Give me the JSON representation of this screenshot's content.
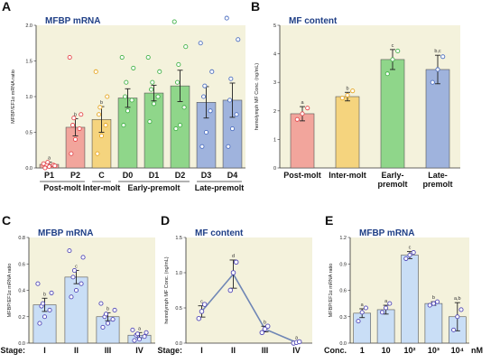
{
  "colors": {
    "plot_bg": "#f4f2dc",
    "title": "#1f3f86",
    "red": "#f2a59c",
    "yellow": "#f5d47e",
    "green": "#8fd68a",
    "blue": "#9fb3dd",
    "light_blue": "#c9def6",
    "dot_red": "#e5484d",
    "dot_yellow": "#e6a623",
    "dot_green": "#44b24a",
    "dot_blue": "#4d6fc0",
    "dot_navy": "#4f46b7"
  },
  "chart_data": [
    {
      "id": "A",
      "type": "bar",
      "panel_label": "A",
      "title": "MFBP mRNA",
      "ylabel": "MFBP/EF1α mRNA ratio",
      "ylim": [
        0,
        2.0
      ],
      "yticks": [
        "0.0",
        "0.5",
        "1.0",
        "1.5",
        "2.0"
      ],
      "categories": [
        "P1",
        "P2",
        "C",
        "D0",
        "D1",
        "D2",
        "D3",
        "D4"
      ],
      "colors": [
        "red",
        "red",
        "yellow",
        "green",
        "green",
        "green",
        "blue",
        "blue"
      ],
      "values": [
        0.05,
        0.57,
        0.68,
        0.98,
        1.05,
        1.15,
        0.92,
        0.95
      ],
      "errors": [
        0.03,
        0.12,
        0.18,
        0.13,
        0.11,
        0.22,
        0.22,
        0.24
      ],
      "letters": [
        "a",
        "b",
        "b",
        "",
        "",
        "",
        "",
        ""
      ],
      "points": [
        [
          0.0,
          0.02,
          0.04,
          0.05,
          0.08,
          0.03,
          0.06
        ],
        [
          0.2,
          0.4,
          0.55,
          0.6,
          0.7,
          0.75,
          1.55
        ],
        [
          0.2,
          0.45,
          0.6,
          0.75,
          0.85,
          1.0,
          1.35
        ],
        [
          0.6,
          0.8,
          0.95,
          1.0,
          1.2,
          1.4,
          1.55
        ],
        [
          0.65,
          0.9,
          1.0,
          1.1,
          1.2,
          1.35,
          1.55
        ],
        [
          0.55,
          0.6,
          0.85,
          1.2,
          1.45,
          1.7,
          2.05
        ],
        [
          0.3,
          0.5,
          0.8,
          1.0,
          1.15,
          1.35,
          1.75
        ],
        [
          0.3,
          0.55,
          0.75,
          0.95,
          1.25,
          1.8,
          2.1
        ]
      ],
      "groups": [
        "Post-molt",
        "Inter-molt",
        "Early-premolt",
        "Late-premolt"
      ]
    },
    {
      "id": "B",
      "type": "bar",
      "panel_label": "B",
      "title": "MF content",
      "ylabel": "hemolymph MF Conc. (ng/mL)",
      "ylim": [
        0,
        5
      ],
      "yticks": [
        "0",
        "1",
        "2",
        "3",
        "4",
        "5"
      ],
      "categories": [
        "Post-molt",
        "Inter-molt",
        "Early-\npremolt",
        "Late-\npremolt"
      ],
      "colors": [
        "red",
        "yellow",
        "green",
        "blue"
      ],
      "values": [
        1.9,
        2.5,
        3.8,
        3.45
      ],
      "errors": [
        0.25,
        0.15,
        0.35,
        0.5
      ],
      "letters": [
        "a",
        "b",
        "c",
        "b,c"
      ],
      "points": [
        [
          1.7,
          1.9,
          2.1
        ],
        [
          2.45,
          2.55,
          2.7
        ],
        [
          3.3,
          3.8,
          4.1
        ],
        [
          3.0,
          3.45,
          3.9
        ]
      ]
    },
    {
      "id": "C",
      "type": "bar",
      "panel_label": "C",
      "title": "MFBP mRNA",
      "ylabel": "MFBP/EF1α mRNA ratio",
      "ylim": [
        0,
        0.8
      ],
      "yticks": [
        "0.0",
        "0.2",
        "0.4",
        "0.6",
        "0.8"
      ],
      "axis_prefix": "Stage:",
      "categories": [
        "I",
        "II",
        "III",
        "IV"
      ],
      "colors": [
        "light_blue",
        "light_blue",
        "light_blue",
        "light_blue"
      ],
      "values": [
        0.29,
        0.5,
        0.2,
        0.06
      ],
      "errors": [
        0.05,
        0.05,
        0.03,
        0.02
      ],
      "letters": [
        "b",
        "c",
        "b",
        "a"
      ],
      "points": [
        [
          0.15,
          0.2,
          0.25,
          0.28,
          0.3,
          0.38,
          0.45
        ],
        [
          0.35,
          0.4,
          0.45,
          0.5,
          0.55,
          0.65,
          0.7
        ],
        [
          0.12,
          0.15,
          0.18,
          0.2,
          0.22,
          0.25,
          0.3
        ],
        [
          0.02,
          0.03,
          0.05,
          0.06,
          0.07,
          0.08,
          0.1
        ]
      ]
    },
    {
      "id": "D",
      "type": "line",
      "panel_label": "D",
      "title": "MF content",
      "ylabel": "hemolymph MF Conc. (ng/mL)",
      "ylim": [
        0,
        1.5
      ],
      "yticks": [
        "0.0",
        "0.5",
        "1.0",
        "1.5"
      ],
      "axis_prefix": "Stage:",
      "categories": [
        "I",
        "II",
        "III",
        "IV"
      ],
      "values": [
        0.45,
        0.98,
        0.2,
        0.01
      ],
      "errors": [
        0.08,
        0.2,
        0.04,
        0.01
      ],
      "letters": [
        "c",
        "d",
        "b",
        "a"
      ],
      "points": [
        [
          0.35,
          0.45,
          0.55
        ],
        [
          0.75,
          1.0,
          1.15
        ],
        [
          0.15,
          0.2,
          0.24
        ],
        [
          0.0,
          0.01,
          0.02
        ]
      ],
      "line_color": "#6f86b5"
    },
    {
      "id": "E",
      "type": "bar",
      "panel_label": "E",
      "title": "MFBP mRNA",
      "ylabel": "MFBP/EF1α mRNA ratio",
      "ylim": [
        0,
        1.2
      ],
      "yticks": [
        "0.0",
        "0.3",
        "0.6",
        "0.9",
        "1.2"
      ],
      "axis_prefix": "Conc.",
      "axis_suffix": "nM",
      "categories": [
        "1",
        "10",
        "10²",
        "10³",
        "10⁴"
      ],
      "colors": [
        "light_blue",
        "light_blue",
        "light_blue",
        "light_blue",
        "light_blue"
      ],
      "values": [
        0.34,
        0.38,
        1.0,
        0.45,
        0.3
      ],
      "errors": [
        0.05,
        0.05,
        0.04,
        0.02,
        0.16
      ],
      "letters": [
        "a",
        "a",
        "c",
        "b",
        "a,b"
      ],
      "points": [
        [
          0.25,
          0.35,
          0.4
        ],
        [
          0.35,
          0.4,
          0.45
        ],
        [
          0.96,
          1.0,
          1.03
        ],
        [
          0.43,
          0.45,
          0.47
        ],
        [
          0.15,
          0.3,
          0.38
        ]
      ]
    }
  ]
}
